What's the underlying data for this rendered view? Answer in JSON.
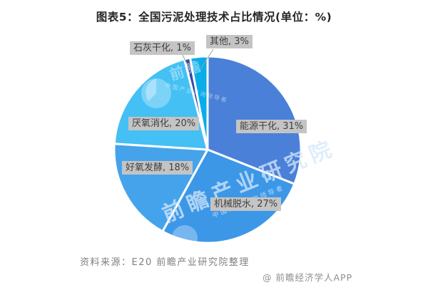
{
  "title": "图表5：全国污泥处理技术占比情况(单位：%)",
  "chart_data": {
    "type": "pie",
    "unit": "%",
    "start_angle_deg": 0,
    "direction": "clockwise",
    "slices": [
      {
        "name": "能源干化",
        "value": 31,
        "label": "能源干化, 31%",
        "color": "#4a80d8"
      },
      {
        "name": "机械脱水",
        "value": 27,
        "label": "机械脱水, 27%",
        "color": "#3d97e7"
      },
      {
        "name": "好氧发酵",
        "value": 18,
        "label": "好氧发酵, 18%",
        "color": "#45a3ec"
      },
      {
        "name": "厌氧消化",
        "value": 20,
        "label": "厌氧消化, 20%",
        "color": "#44c0f4"
      },
      {
        "name": "石灰干化",
        "value": 1,
        "label": "石灰干化, 1%",
        "color": "#2e4da2"
      },
      {
        "name": "其他",
        "value": 3,
        "label": "其他, 3%",
        "color": "#09ade9"
      }
    ],
    "label_bg": "#c4c4c4",
    "label_text_color": "#3f3f3f",
    "slice_border_color": "#ffffff"
  },
  "footer": {
    "source": "资料来源：E20 前瞻产业研究院整理",
    "credit": "@ 前瞻经济学人APP"
  },
  "watermark": {
    "brand_large": "前瞻产业研究院",
    "brand_small": "中国产业咨询领导者",
    "logo_text": "前瞻",
    "logo_sub": "中国产业咨询领导者"
  }
}
